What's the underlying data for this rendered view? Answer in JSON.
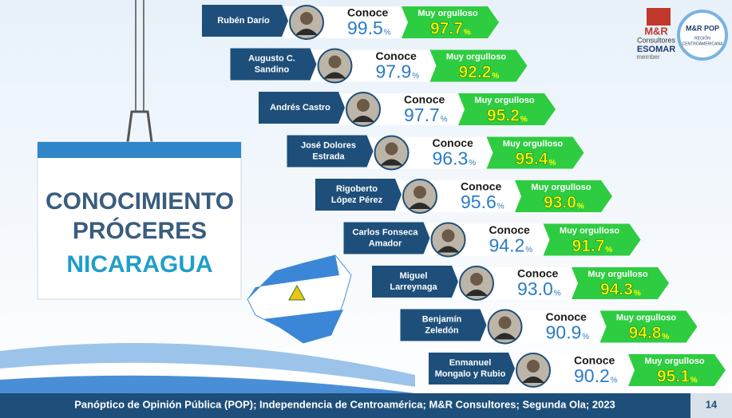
{
  "title_lines": [
    "CONOCIMIENTO",
    "PRÓCERES",
    "NICARAGUA"
  ],
  "labels": {
    "conoce": "Conoce",
    "orgullo": "Muy orgulloso",
    "percent": "%"
  },
  "rows": [
    {
      "name": [
        "Rubén Darío"
      ],
      "conoce": "99.5",
      "orgullo": "97.7"
    },
    {
      "name": [
        "Augusto C.",
        "Sandino"
      ],
      "conoce": "97.9",
      "orgullo": "92.2"
    },
    {
      "name": [
        "Andrés Castro"
      ],
      "conoce": "97.7",
      "orgullo": "95.2"
    },
    {
      "name": [
        "José Dolores",
        "Estrada"
      ],
      "conoce": "96.3",
      "orgullo": "95.4"
    },
    {
      "name": [
        "Rigoberto",
        "López Pérez"
      ],
      "conoce": "95.6",
      "orgullo": "93.0"
    },
    {
      "name": [
        "Carlos Fonseca",
        "Amador"
      ],
      "conoce": "94.2",
      "orgullo": "91.7"
    },
    {
      "name": [
        "Miguel",
        "Larreynaga"
      ],
      "conoce": "93.0",
      "orgullo": "94.3"
    },
    {
      "name": [
        "Benjamín",
        "Zeledón"
      ],
      "conoce": "90.9",
      "orgullo": "94.8"
    },
    {
      "name": [
        "Enmanuel",
        "Mongalo y Rubio"
      ],
      "conoce": "90.2",
      "orgullo": "95.1"
    }
  ],
  "logos": {
    "mr": "M&R",
    "consultores": "Consultores",
    "esomar": "ESOMAR",
    "member": "member",
    "pop": "M&R POP",
    "region": [
      "REGIÓN",
      "CENTROAMERICANA"
    ]
  },
  "footer": {
    "text": "Panóptico de Opinión Pública (POP); Independencia de Centroamérica; M&R Consultores; Segunda Ola; 2023",
    "page": "14"
  }
}
